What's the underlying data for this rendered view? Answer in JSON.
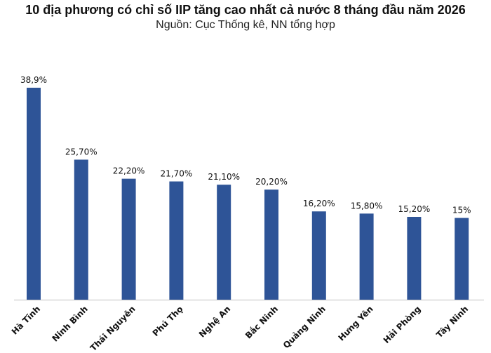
{
  "title": "10 địa phương có chỉ số IIP tăng cao nhất cả nước 8 tháng đầu năm 2026",
  "subtitle": "Nguồn: Cục Thống kê, NN tổng hợp",
  "colors": {
    "bar": "#2E5497",
    "axis": "#bfbfbf"
  },
  "chart_data": {
    "type": "bar",
    "categories": [
      "Hà Tĩnh",
      "Ninh Bình",
      "Thái Nguyên",
      "Phú Thọ",
      "Nghệ An",
      "Bắc Ninh",
      "Quảng Ninh",
      "Hưng Yên",
      "Hải Phòng",
      "Tây Ninh"
    ],
    "values": [
      38.9,
      25.7,
      22.2,
      21.7,
      21.1,
      20.2,
      16.2,
      15.8,
      15.2,
      15
    ],
    "data_labels": [
      "38,9%",
      "25,70%",
      "22,20%",
      "21,70%",
      "21,10%",
      "20,20%",
      "16,20%",
      "15,80%",
      "15,20%",
      "15%"
    ],
    "title": "10 địa phương có chỉ số IIP tăng cao nhất cả nước 8 tháng đầu năm 2026",
    "xlabel": "",
    "ylabel": "",
    "ylim": [
      0,
      40
    ],
    "grid": false,
    "legend": "none"
  }
}
